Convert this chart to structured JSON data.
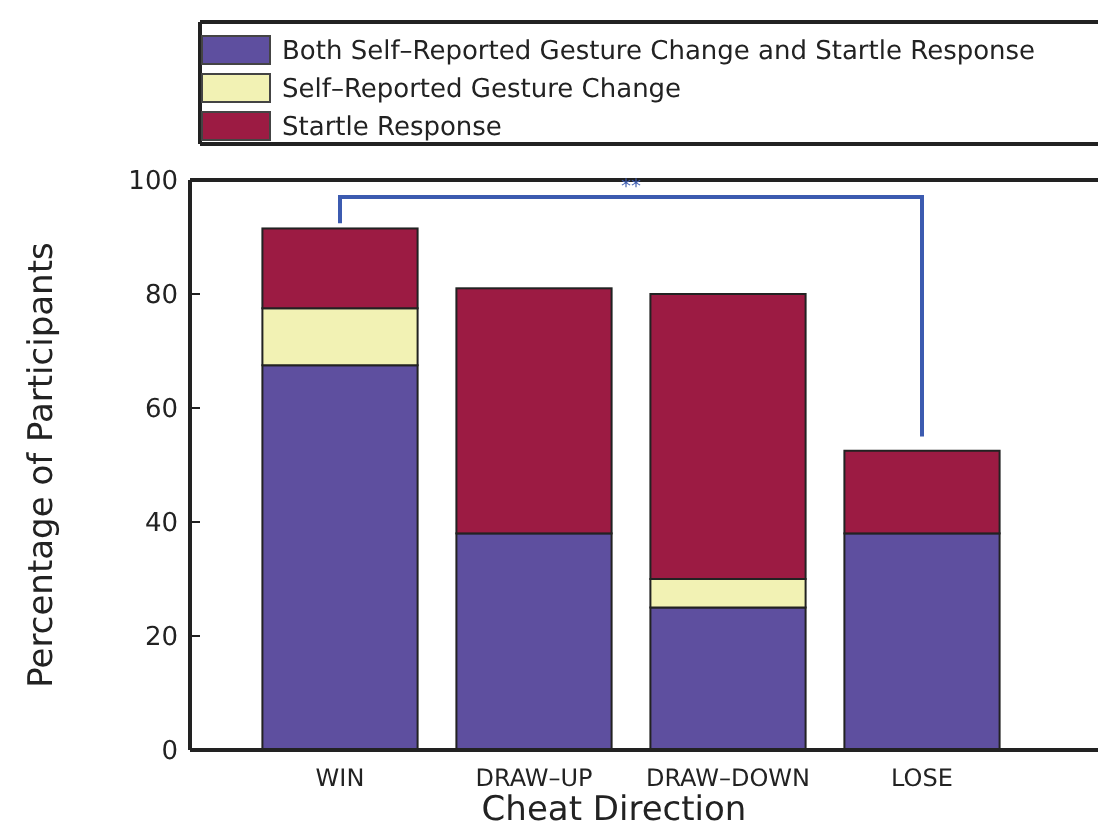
{
  "chart_data": {
    "type": "bar",
    "stacked": true,
    "xlabel": "Cheat Direction",
    "ylabel": "Percentage of Participants",
    "categories": [
      "WIN",
      "DRAW–UP",
      "DRAW–DOWN",
      "LOSE"
    ],
    "series": [
      {
        "name": "Both Self–Reported Gesture Change and Startle Response",
        "color": "#5e4f9f",
        "values": [
          67.5,
          38,
          25,
          38
        ]
      },
      {
        "name": "Self–Reported Gesture Change",
        "color": "#f2f2b4",
        "values": [
          10,
          0,
          5,
          0
        ]
      },
      {
        "name": "Startle Response",
        "color": "#9c1b43",
        "values": [
          14,
          43,
          50,
          14.5
        ]
      }
    ],
    "ylim": [
      0,
      100
    ],
    "yticks": [
      0,
      20,
      40,
      60,
      80,
      100
    ],
    "grid": false,
    "legend": "top",
    "annotations": [
      "**"
    ]
  }
}
